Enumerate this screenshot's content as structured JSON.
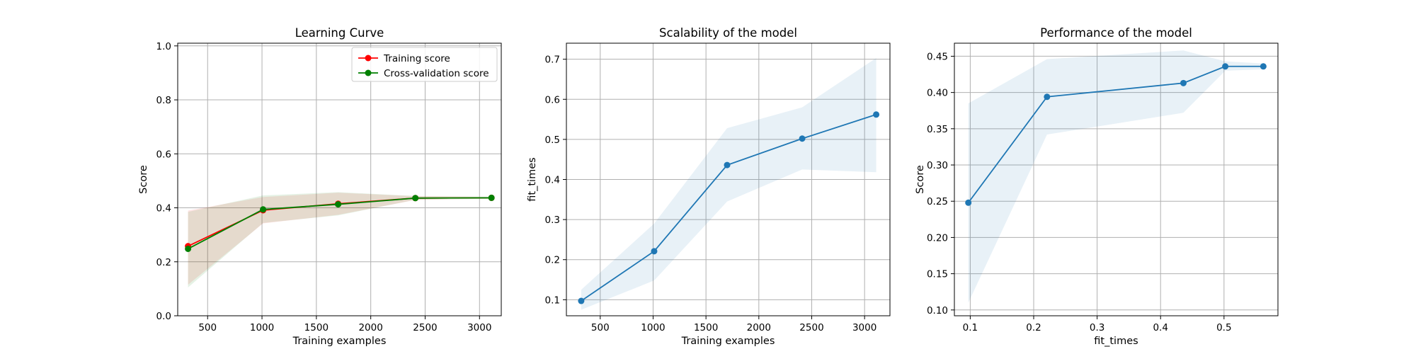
{
  "chart_data": [
    {
      "type": "line",
      "title": "Learning Curve",
      "xlabel": "Training examples",
      "ylabel": "Score",
      "xlim": [
        225,
        3200
      ],
      "ylim": [
        0.0,
        1.01
      ],
      "xticks": [
        500,
        1000,
        1500,
        2000,
        2500,
        3000
      ],
      "yticks": [
        0.0,
        0.2,
        0.4,
        0.6,
        0.8,
        1.0
      ],
      "tick_decimals_y": 1,
      "grid": true,
      "legend": "top-right",
      "x": [
        320,
        1010,
        1700,
        2410,
        3110
      ],
      "series": [
        {
          "name": "Training score",
          "color": "#ff0000",
          "band_color": "#ff0000",
          "values": [
            0.258,
            0.391,
            0.415,
            0.436,
            0.437
          ],
          "lower": [
            0.115,
            0.342,
            0.374,
            0.429,
            0.434
          ],
          "upper": [
            0.39,
            0.44,
            0.456,
            0.443,
            0.44
          ]
        },
        {
          "name": "Cross-validation score",
          "color": "#008000",
          "band_color": "#008000",
          "values": [
            0.248,
            0.394,
            0.413,
            0.436,
            0.437
          ],
          "lower": [
            0.105,
            0.344,
            0.372,
            0.43,
            0.435
          ],
          "upper": [
            0.385,
            0.446,
            0.458,
            0.444,
            0.441
          ]
        }
      ]
    },
    {
      "type": "line",
      "title": "Scalability of the model",
      "xlabel": "Training examples",
      "ylabel": "fit_times",
      "xlim": [
        180,
        3240
      ],
      "ylim": [
        0.06,
        0.74
      ],
      "xticks": [
        500,
        1000,
        1500,
        2000,
        2500,
        3000
      ],
      "yticks": [
        0.1,
        0.2,
        0.3,
        0.4,
        0.5,
        0.6,
        0.7
      ],
      "tick_decimals_y": 1,
      "grid": true,
      "x": [
        320,
        1010,
        1700,
        2410,
        3110
      ],
      "series": [
        {
          "color": "#1f77b4",
          "band_color": "#1f77b4",
          "values": [
            0.097,
            0.221,
            0.436,
            0.502,
            0.562
          ],
          "lower": [
            0.075,
            0.148,
            0.345,
            0.425,
            0.418
          ],
          "upper": [
            0.125,
            0.29,
            0.528,
            0.58,
            0.703
          ]
        }
      ]
    },
    {
      "type": "line",
      "title": "Performance of the model",
      "xlabel": "fit_times",
      "ylabel": "Score",
      "xlim": [
        0.075,
        0.585
      ],
      "ylim": [
        0.092,
        0.468
      ],
      "xticks": [
        0.1,
        0.2,
        0.3,
        0.4,
        0.5
      ],
      "yticks": [
        0.1,
        0.15,
        0.2,
        0.25,
        0.3,
        0.35,
        0.4,
        0.45
      ],
      "tick_decimals_x": 1,
      "tick_decimals_y": 2,
      "grid": true,
      "x": [
        0.097,
        0.221,
        0.436,
        0.502,
        0.562
      ],
      "series": [
        {
          "color": "#1f77b4",
          "band_color": "#1f77b4",
          "values": [
            0.248,
            0.394,
            0.413,
            0.436,
            0.436
          ],
          "lower": [
            0.11,
            0.342,
            0.372,
            0.43,
            0.432
          ],
          "upper": [
            0.385,
            0.446,
            0.458,
            0.443,
            0.44
          ]
        }
      ]
    }
  ]
}
